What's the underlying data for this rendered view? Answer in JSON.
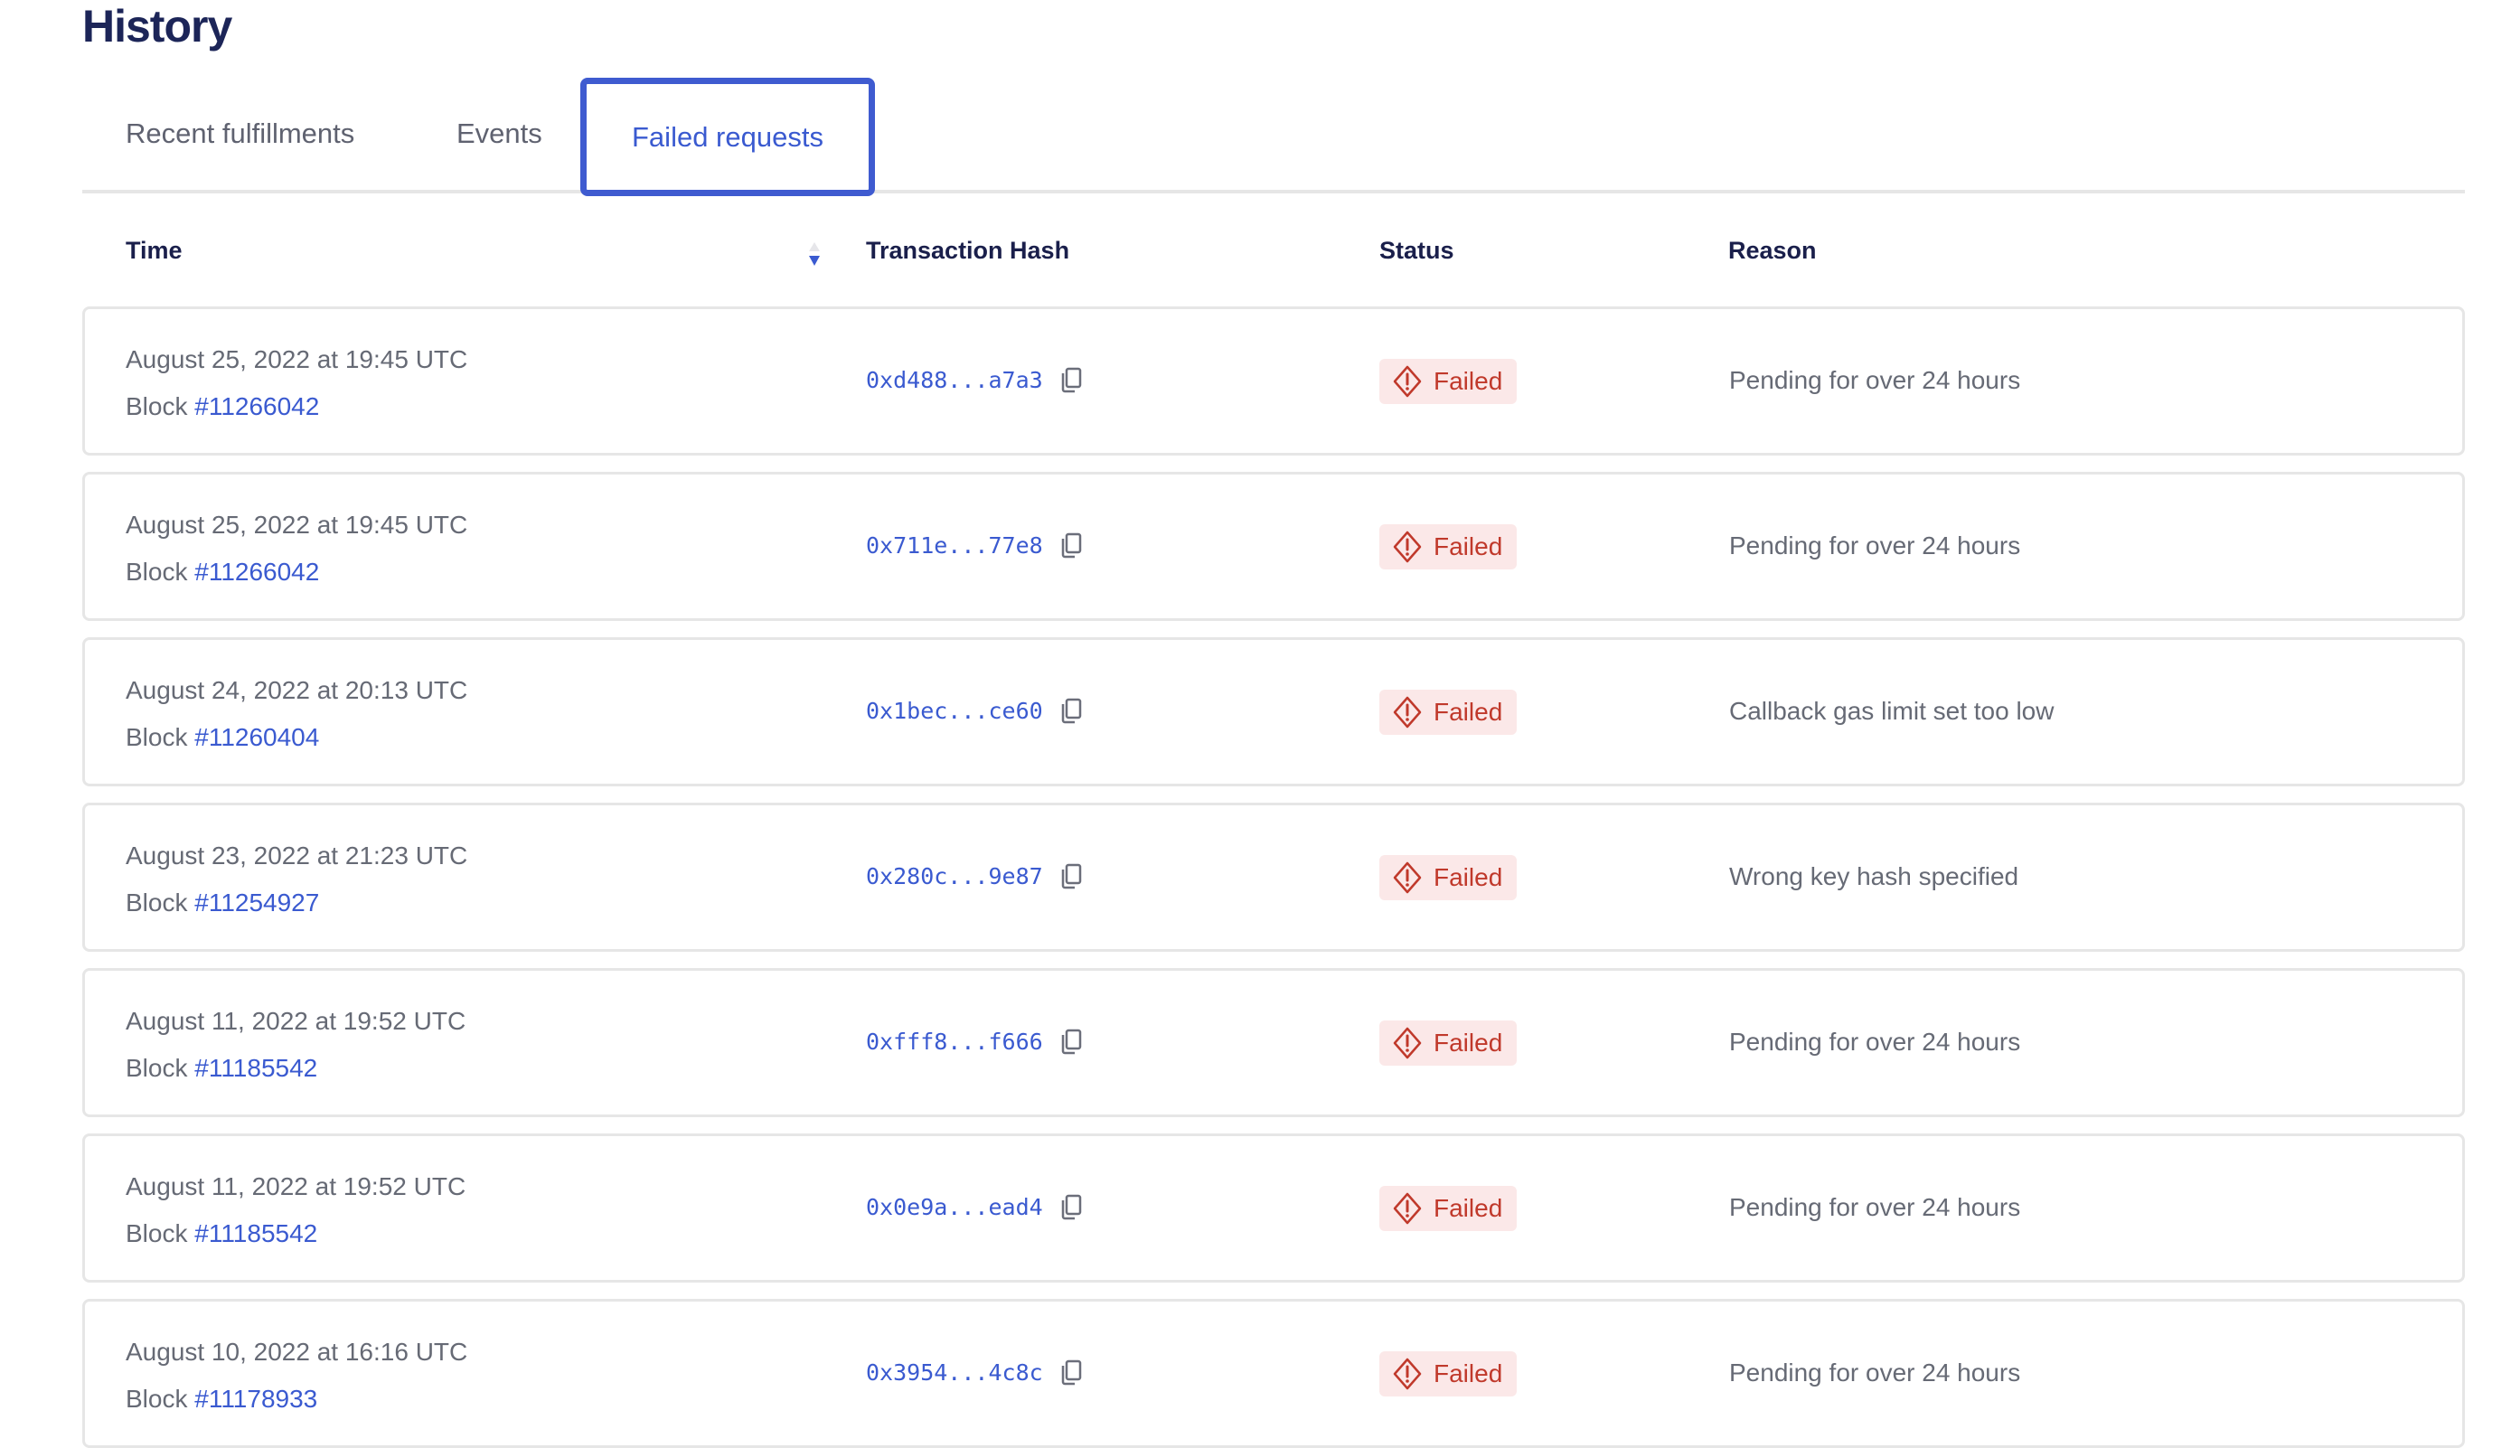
{
  "page": {
    "title": "History"
  },
  "tabs": [
    {
      "label": "Recent fulfillments",
      "active": false
    },
    {
      "label": "Events",
      "active": false
    },
    {
      "label": "Failed requests",
      "active": true
    }
  ],
  "table": {
    "columns": [
      "Time",
      "Transaction Hash",
      "Status",
      "Reason"
    ],
    "sort": {
      "column": "Time",
      "direction": "descending"
    },
    "block_prefix": "Block",
    "rows": [
      {
        "time": "August 25, 2022 at 19:45 UTC",
        "block": "#11266042",
        "hash": "0xd488...a7a3",
        "status": "Failed",
        "reason": "Pending for over 24 hours"
      },
      {
        "time": "August 25, 2022 at 19:45 UTC",
        "block": "#11266042",
        "hash": "0x711e...77e8",
        "status": "Failed",
        "reason": "Pending for over 24 hours"
      },
      {
        "time": "August 24, 2022 at 20:13 UTC",
        "block": "#11260404",
        "hash": "0x1bec...ce60",
        "status": "Failed",
        "reason": "Callback gas limit set too low"
      },
      {
        "time": "August 23, 2022 at 21:23 UTC",
        "block": "#11254927",
        "hash": "0x280c...9e87",
        "status": "Failed",
        "reason": "Wrong key hash specified"
      },
      {
        "time": "August 11, 2022 at 19:52 UTC",
        "block": "#11185542",
        "hash": "0xfff8...f666",
        "status": "Failed",
        "reason": "Pending for over 24 hours"
      },
      {
        "time": "August 11, 2022 at 19:52 UTC",
        "block": "#11185542",
        "hash": "0x0e9a...ead4",
        "status": "Failed",
        "reason": "Pending for over 24 hours"
      },
      {
        "time": "August 10, 2022 at 16:16 UTC",
        "block": "#11178933",
        "hash": "0x3954...4c8c",
        "status": "Failed",
        "reason": "Pending for over 24 hours"
      }
    ]
  },
  "colors": {
    "accent": "#3f5bd0",
    "failed_text": "#c0392b",
    "failed_bg": "#fbe8e8",
    "heading": "#1c2558"
  },
  "icons": {
    "status": "diamond-exclamation-icon",
    "copy": "copy-icon",
    "sort": "sort-arrows-icon"
  }
}
